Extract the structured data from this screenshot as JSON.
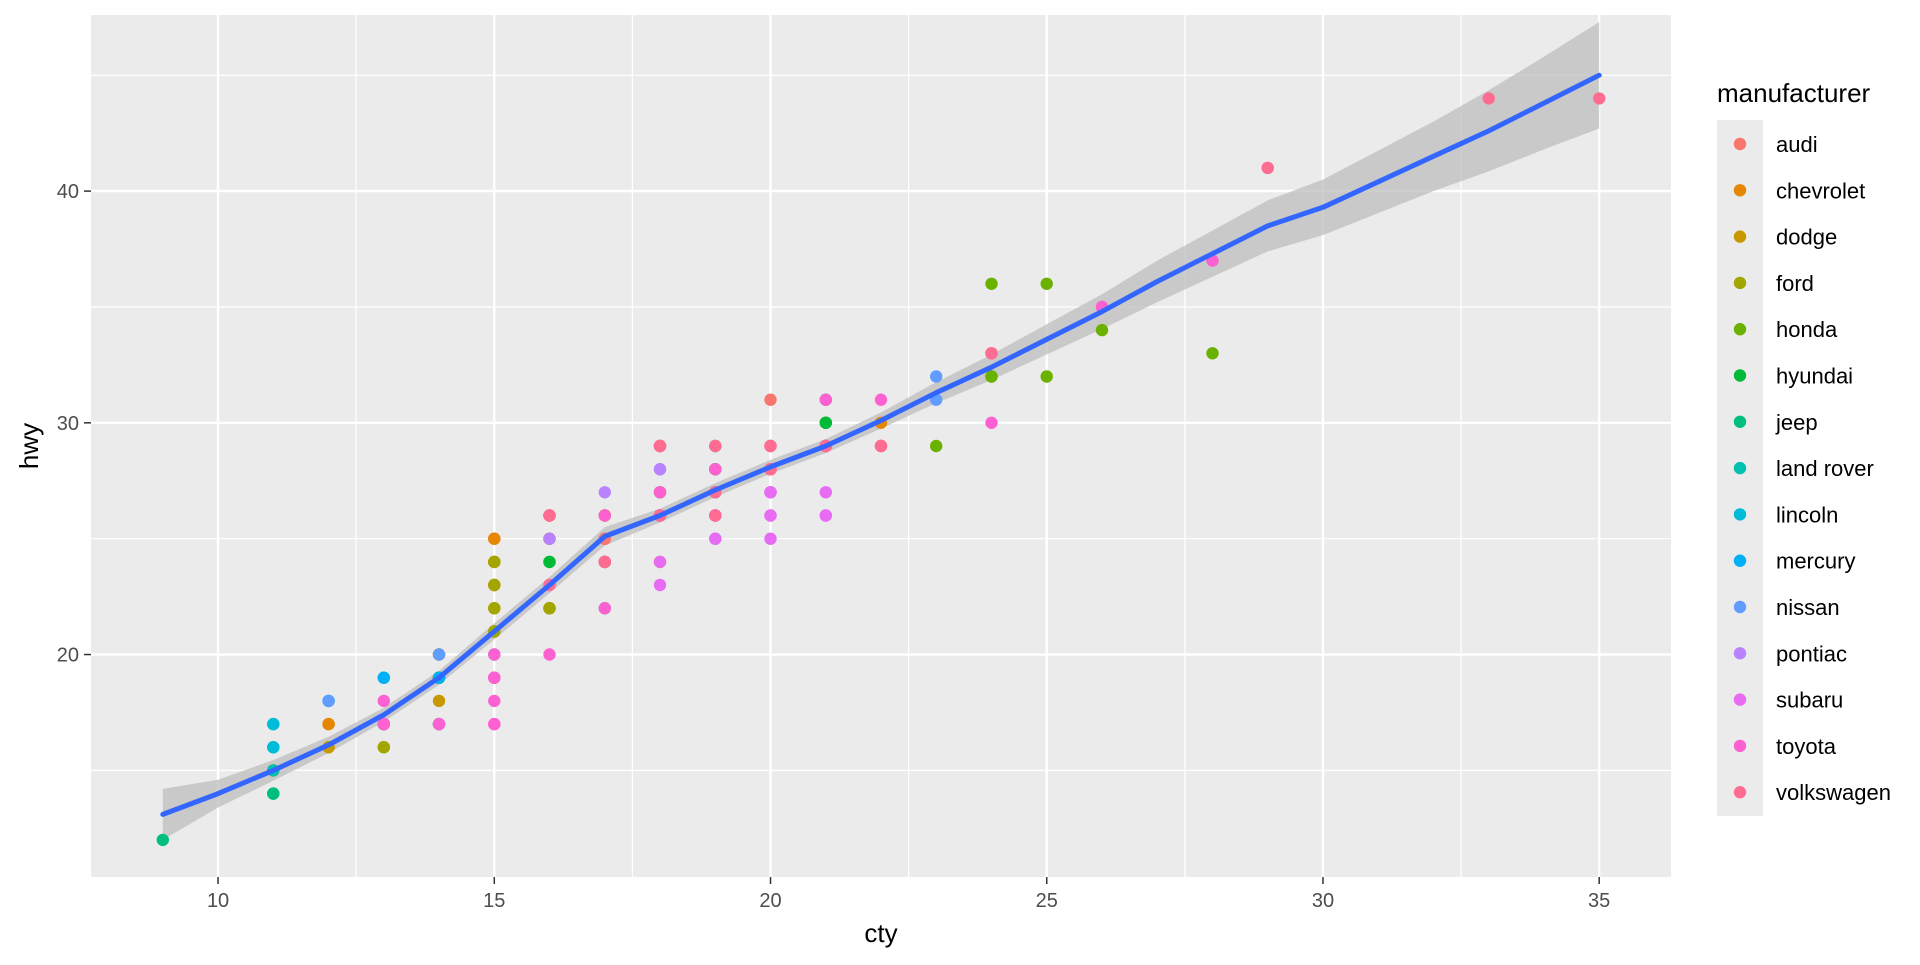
{
  "chart_data": {
    "type": "scatter",
    "xlabel": "cty",
    "ylabel": "hwy",
    "xlim": [
      7.7,
      36.3
    ],
    "ylim": [
      10.4,
      47.6
    ],
    "x_ticks": [
      10,
      15,
      20,
      25,
      30,
      35
    ],
    "y_ticks": [
      20,
      30,
      40
    ],
    "grid": true,
    "legend": {
      "title": "manufacturer",
      "placement": "right"
    },
    "series": [
      {
        "name": "audi",
        "color": "#F8766D",
        "points": [
          [
            18,
            29
          ],
          [
            21,
            29
          ],
          [
            20,
            31
          ],
          [
            21,
            30
          ],
          [
            16,
            26
          ],
          [
            18,
            26
          ],
          [
            18,
            27
          ],
          [
            17,
            26
          ],
          [
            16,
            25
          ],
          [
            20,
            28
          ],
          [
            19,
            27
          ],
          [
            15,
            25
          ],
          [
            17,
            25
          ],
          [
            17,
            25
          ],
          [
            15,
            23
          ]
        ]
      },
      {
        "name": "chevrolet",
        "color": "#E58700",
        "points": [
          [
            14,
            20
          ],
          [
            11,
            15
          ],
          [
            14,
            20
          ],
          [
            13,
            17
          ],
          [
            12,
            17
          ],
          [
            16,
            26
          ],
          [
            15,
            23
          ],
          [
            16,
            26
          ],
          [
            15,
            25
          ],
          [
            15,
            24
          ],
          [
            19,
            27
          ],
          [
            22,
            30
          ],
          [
            18,
            26
          ],
          [
            18,
            29
          ],
          [
            17,
            26
          ],
          [
            18,
            26
          ],
          [
            12,
            17
          ],
          [
            14,
            19
          ]
        ]
      },
      {
        "name": "dodge",
        "color": "#C99800",
        "points": [
          [
            18,
            24
          ],
          [
            17,
            24
          ],
          [
            16,
            22
          ],
          [
            16,
            22
          ],
          [
            17,
            24
          ],
          [
            15,
            24
          ],
          [
            15,
            22
          ],
          [
            14,
            18
          ],
          [
            13,
            17
          ],
          [
            14,
            19
          ],
          [
            12,
            16
          ],
          [
            14,
            17
          ],
          [
            11,
            15
          ],
          [
            14,
            19
          ],
          [
            13,
            17
          ],
          [
            16,
            22
          ],
          [
            15,
            21
          ],
          [
            12,
            16
          ],
          [
            15,
            24
          ]
        ]
      },
      {
        "name": "ford",
        "color": "#A3A500",
        "points": [
          [
            15,
            21
          ],
          [
            13,
            16
          ],
          [
            14,
            19
          ],
          [
            15,
            21
          ],
          [
            15,
            22
          ],
          [
            15,
            23
          ],
          [
            14,
            19
          ],
          [
            15,
            24
          ],
          [
            13,
            17
          ],
          [
            13,
            16
          ],
          [
            16,
            22
          ],
          [
            15,
            21
          ],
          [
            14,
            19
          ],
          [
            17,
            26
          ],
          [
            16,
            25
          ]
        ]
      },
      {
        "name": "honda",
        "color": "#6BB100",
        "points": [
          [
            28,
            33
          ],
          [
            24,
            32
          ],
          [
            25,
            32
          ],
          [
            23,
            29
          ],
          [
            24,
            32
          ],
          [
            26,
            34
          ],
          [
            25,
            36
          ],
          [
            24,
            36
          ],
          [
            21,
            29
          ]
        ]
      },
      {
        "name": "hyundai",
        "color": "#00BA38",
        "points": [
          [
            18,
            26
          ],
          [
            18,
            27
          ],
          [
            21,
            30
          ],
          [
            21,
            31
          ],
          [
            18,
            26
          ],
          [
            18,
            26
          ],
          [
            19,
            29
          ],
          [
            19,
            28
          ],
          [
            16,
            24
          ],
          [
            17,
            24
          ],
          [
            16,
            24
          ],
          [
            17,
            24
          ],
          [
            19,
            28
          ],
          [
            21,
            30
          ]
        ]
      },
      {
        "name": "jeep",
        "color": "#00BF7D",
        "points": [
          [
            17,
            22
          ],
          [
            15,
            19
          ],
          [
            15,
            20
          ],
          [
            14,
            17
          ],
          [
            11,
            14
          ],
          [
            9,
            12
          ],
          [
            14,
            19
          ],
          [
            11,
            14
          ]
        ]
      },
      {
        "name": "land rover",
        "color": "#00C0AF",
        "points": [
          [
            11,
            15
          ],
          [
            11,
            17
          ],
          [
            11,
            16
          ],
          [
            12,
            18
          ]
        ]
      },
      {
        "name": "lincoln",
        "color": "#00BCD8",
        "points": [
          [
            11,
            17
          ],
          [
            11,
            16
          ],
          [
            12,
            18
          ]
        ]
      },
      {
        "name": "mercury",
        "color": "#00B0F6",
        "points": [
          [
            14,
            19
          ],
          [
            13,
            19
          ],
          [
            13,
            17
          ],
          [
            13,
            19
          ]
        ]
      },
      {
        "name": "nissan",
        "color": "#619CFF",
        "points": [
          [
            21,
            29
          ],
          [
            19,
            27
          ],
          [
            23,
            31
          ],
          [
            23,
            32
          ],
          [
            19,
            27
          ],
          [
            19,
            26
          ],
          [
            18,
            26
          ],
          [
            19,
            25
          ],
          [
            14,
            20
          ],
          [
            12,
            18
          ],
          [
            14,
            17
          ],
          [
            19,
            27
          ]
        ]
      },
      {
        "name": "pontiac",
        "color": "#B983FF",
        "points": [
          [
            18,
            26
          ],
          [
            16,
            25
          ],
          [
            17,
            27
          ],
          [
            18,
            28
          ],
          [
            18,
            28
          ]
        ]
      },
      {
        "name": "subaru",
        "color": "#E76BF3",
        "points": [
          [
            20,
            27
          ],
          [
            20,
            26
          ],
          [
            21,
            26
          ],
          [
            19,
            25
          ],
          [
            20,
            27
          ],
          [
            18,
            24
          ],
          [
            19,
            26
          ],
          [
            19,
            26
          ],
          [
            20,
            25
          ],
          [
            20,
            26
          ],
          [
            18,
            23
          ],
          [
            21,
            27
          ],
          [
            21,
            26
          ],
          [
            20,
            27
          ]
        ]
      },
      {
        "name": "toyota",
        "color": "#FD61D1",
        "points": [
          [
            15,
            20
          ],
          [
            16,
            20
          ],
          [
            15,
            17
          ],
          [
            15,
            19
          ],
          [
            14,
            17
          ],
          [
            17,
            22
          ],
          [
            15,
            17
          ],
          [
            15,
            18
          ],
          [
            15,
            19
          ],
          [
            21,
            31
          ],
          [
            21,
            29
          ],
          [
            24,
            33
          ],
          [
            24,
            30
          ],
          [
            18,
            27
          ],
          [
            18,
            26
          ],
          [
            18,
            29
          ],
          [
            22,
            31
          ],
          [
            26,
            35
          ],
          [
            28,
            37
          ],
          [
            26,
            35
          ],
          [
            29,
            41
          ],
          [
            24,
            33
          ],
          [
            17,
            24
          ],
          [
            17,
            26
          ],
          [
            17,
            24
          ],
          [
            20,
            28
          ],
          [
            16,
            26
          ],
          [
            19,
            28
          ],
          [
            20,
            29
          ],
          [
            13,
            17
          ],
          [
            13,
            18
          ],
          [
            16,
            23
          ],
          [
            15,
            19
          ],
          [
            18,
            26
          ]
        ]
      },
      {
        "name": "volkswagen",
        "color": "#FF6C91",
        "points": [
          [
            35,
            44
          ],
          [
            33,
            44
          ],
          [
            21,
            29
          ],
          [
            19,
            26
          ],
          [
            19,
            29
          ],
          [
            21,
            29
          ],
          [
            22,
            29
          ],
          [
            17,
            24
          ],
          [
            20,
            28
          ],
          [
            20,
            29
          ],
          [
            18,
            29
          ],
          [
            17,
            24
          ],
          [
            16,
            23
          ],
          [
            18,
            26
          ],
          [
            22,
            29
          ],
          [
            19,
            27
          ],
          [
            16,
            26
          ],
          [
            20,
            29
          ],
          [
            20,
            28
          ],
          [
            18,
            29
          ],
          [
            20,
            28
          ],
          [
            24,
            33
          ],
          [
            21,
            29
          ],
          [
            19,
            26
          ],
          [
            29,
            41
          ],
          [
            21,
            29
          ],
          [
            22,
            29
          ]
        ]
      }
    ],
    "smooth": {
      "name": "loess",
      "color": "#3366FF",
      "band_color": "#bdbdbd",
      "points": [
        [
          9,
          13.1
        ],
        [
          10,
          14
        ],
        [
          11,
          15
        ],
        [
          12,
          16.1
        ],
        [
          13,
          17.4
        ],
        [
          14,
          19
        ],
        [
          15,
          21
        ],
        [
          16,
          23
        ],
        [
          17,
          25.1
        ],
        [
          18,
          26
        ],
        [
          19,
          27.1
        ],
        [
          20,
          28.1
        ],
        [
          21,
          29
        ],
        [
          22,
          30.1
        ],
        [
          23,
          31.3
        ],
        [
          24,
          32.4
        ],
        [
          25,
          33.6
        ],
        [
          26,
          34.8
        ],
        [
          27,
          36.1
        ],
        [
          28,
          37.3
        ],
        [
          29,
          38.5
        ],
        [
          30,
          39.3
        ],
        [
          31,
          40.4
        ],
        [
          32,
          41.5
        ],
        [
          33,
          42.6
        ],
        [
          34,
          43.8
        ],
        [
          35,
          45
        ]
      ],
      "band_halfwidth": [
        [
          9,
          1.1
        ],
        [
          10,
          0.6
        ],
        [
          11,
          0.45
        ],
        [
          12,
          0.35
        ],
        [
          13,
          0.3
        ],
        [
          14,
          0.3
        ],
        [
          15,
          0.35
        ],
        [
          16,
          0.35
        ],
        [
          17,
          0.4
        ],
        [
          18,
          0.3
        ],
        [
          19,
          0.3
        ],
        [
          20,
          0.3
        ],
        [
          21,
          0.3
        ],
        [
          22,
          0.35
        ],
        [
          23,
          0.45
        ],
        [
          24,
          0.55
        ],
        [
          25,
          0.65
        ],
        [
          26,
          0.75
        ],
        [
          27,
          0.9
        ],
        [
          28,
          1.0
        ],
        [
          29,
          1.1
        ],
        [
          30,
          1.2
        ],
        [
          31,
          1.35
        ],
        [
          32,
          1.5
        ],
        [
          33,
          1.75
        ],
        [
          34,
          2.0
        ],
        [
          35,
          2.3
        ]
      ]
    }
  }
}
